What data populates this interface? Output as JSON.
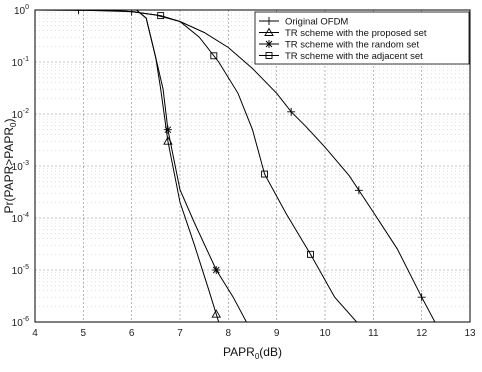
{
  "chart_data": {
    "type": "line",
    "xlabel": "PAPR",
    "xlabel_sub": "0",
    "xlabel_unit": "(dB)",
    "ylabel": "Pr(PAPR>PAPR",
    "ylabel_sub": "0",
    "ylabel_close": ")",
    "xlim": [
      4,
      13
    ],
    "ylim": [
      1e-06,
      1
    ],
    "yscale": "log",
    "grid": true,
    "legend_position": "top-right",
    "x_ticks": [
      "4",
      "5",
      "6",
      "7",
      "8",
      "9",
      "10",
      "11",
      "12",
      "13"
    ],
    "y_ticks": [
      {
        "base": "10",
        "exp": "0"
      },
      {
        "base": "10",
        "exp": "-1"
      },
      {
        "base": "10",
        "exp": "-2"
      },
      {
        "base": "10",
        "exp": "-3"
      },
      {
        "base": "10",
        "exp": "-4"
      },
      {
        "base": "10",
        "exp": "-5"
      },
      {
        "base": "10",
        "exp": "-6"
      }
    ],
    "series": [
      {
        "name": "Original OFDM",
        "marker": "plus",
        "x": [
          4.0,
          4.9,
          5.5,
          6.0,
          6.5,
          7.0,
          7.5,
          8.0,
          8.5,
          9.0,
          9.3,
          9.6,
          10.0,
          10.5,
          11.0,
          11.5,
          12.0,
          12.3,
          12.5
        ],
        "y": [
          1.0,
          0.99,
          0.98,
          0.93,
          0.8,
          0.6,
          0.37,
          0.19,
          0.075,
          0.025,
          0.011,
          0.0058,
          0.0023,
          0.00065,
          0.00013,
          2.5e-05,
          3e-06,
          9e-07,
          3e-07
        ],
        "marker_x": [
          4.9,
          6.0,
          9.3,
          10.7,
          12.0
        ]
      },
      {
        "name": "TR scheme with the proposed set",
        "marker": "triangle",
        "x": [
          6.1,
          6.3,
          6.5,
          6.6,
          6.75,
          7.0,
          7.3,
          7.6,
          7.8
        ],
        "y": [
          1.0,
          0.7,
          0.12,
          0.03,
          0.003,
          0.0002,
          3e-05,
          4e-06,
          1e-06
        ],
        "marker_x": [
          6.75,
          7.75
        ]
      },
      {
        "name": "TR scheme with the random set",
        "marker": "star",
        "x": [
          6.1,
          6.3,
          6.5,
          6.65,
          6.75,
          7.0,
          7.3,
          7.75,
          8.1,
          8.4
        ],
        "y": [
          1.0,
          0.7,
          0.12,
          0.03,
          0.005,
          0.00035,
          8e-05,
          1e-05,
          3e-06,
          9e-07
        ],
        "marker_x": [
          6.75,
          7.75
        ]
      },
      {
        "name": "TR scheme with the adjacent set",
        "marker": "square",
        "x": [
          4.0,
          5.0,
          6.0,
          6.6,
          7.0,
          7.4,
          7.8,
          8.2,
          8.5,
          8.75,
          9.2,
          9.7,
          10.2,
          10.7
        ],
        "y": [
          1.0,
          0.99,
          0.93,
          0.78,
          0.6,
          0.3,
          0.1,
          0.025,
          0.005,
          0.0007,
          0.00012,
          2e-05,
          3e-06,
          9e-07
        ],
        "marker_x": [
          6.6,
          7.7,
          8.75,
          9.7
        ]
      }
    ]
  }
}
